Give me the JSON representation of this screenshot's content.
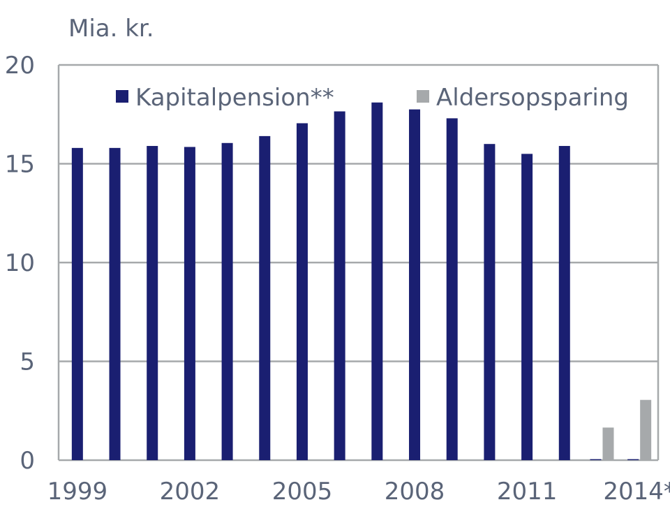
{
  "chart_data": {
    "type": "bar",
    "ylabel": "Mia. kr.",
    "ylim": [
      0,
      20
    ],
    "yticks": [
      0,
      5,
      10,
      15,
      20
    ],
    "categories": [
      "1999",
      "2000",
      "2001",
      "2002",
      "2003",
      "2004",
      "2005",
      "2006",
      "2007",
      "2008",
      "2009",
      "2010",
      "2011",
      "2012",
      "2013",
      "2014*"
    ],
    "xtick_labels": [
      "1999",
      "2002",
      "2005",
      "2008",
      "2011",
      "2014*"
    ],
    "xtick_categories": [
      "1999",
      "2002",
      "2005",
      "2008",
      "2011",
      "2014*"
    ],
    "grid": true,
    "legend_position": "top",
    "series": [
      {
        "name": "Kapitalpension**",
        "color": "#1a1f71",
        "values": [
          15.8,
          15.8,
          15.9,
          15.85,
          16.05,
          16.4,
          17.05,
          17.65,
          18.1,
          17.75,
          17.3,
          16.0,
          15.5,
          15.9,
          0.05,
          0.05
        ]
      },
      {
        "name": "Aldersopsparing",
        "color": "#a6a9ab",
        "values": [
          0,
          0,
          0,
          0,
          0,
          0,
          0,
          0,
          0,
          0,
          0,
          0,
          0,
          0,
          1.65,
          3.05
        ]
      }
    ],
    "axis_color": "#a6a9ab",
    "grid_color": "#a6a9ab"
  }
}
